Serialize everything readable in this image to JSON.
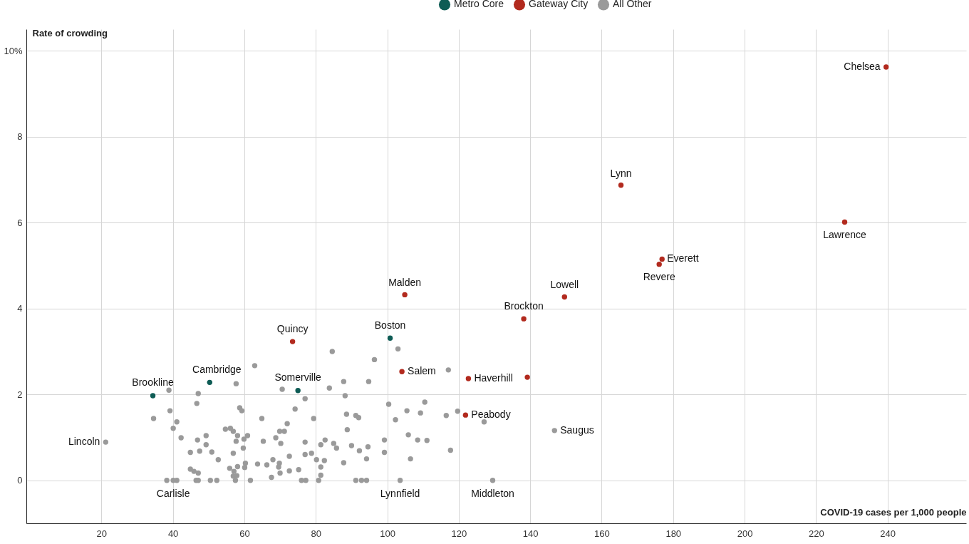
{
  "chart_data": {
    "type": "scatter",
    "xlabel": "COVID-19 cases per 1,000 people",
    "ylabel": "Rate of crowding",
    "xlim": [
      -1,
      262
    ],
    "ylim": [
      -1,
      10.5
    ],
    "xticks": [
      20,
      40,
      60,
      80,
      100,
      120,
      140,
      160,
      180,
      200,
      220,
      240
    ],
    "yticks": [
      0,
      2,
      4,
      6,
      8,
      {
        "value": 10,
        "label": "10%"
      }
    ],
    "grid": true,
    "legend": "top",
    "marker": "circle",
    "series": [
      {
        "name": "Metro Core",
        "color": "#0e5c55",
        "x": [
          34.4,
          50.3,
          75.0,
          100.8
        ],
        "values": [
          1.97,
          2.28,
          2.09,
          3.31
        ]
      },
      {
        "name": "Gateway City",
        "color": "#b22a1e",
        "x": [
          73.5,
          104.9,
          104.1,
          122.7,
          139.2,
          121.9,
          138.2,
          149.6,
          165.4,
          176.9,
          176.1,
          228.0,
          239.6
        ],
        "values": [
          3.23,
          4.32,
          2.53,
          2.37,
          2.4,
          1.52,
          3.76,
          4.27,
          6.87,
          5.15,
          5.03,
          6.01,
          9.62
        ]
      },
      {
        "name": "All Other",
        "color": "#9a9a9a",
        "x": [
          21.2,
          146.8,
          103.6,
          129.5,
          62.9,
          57.7,
          38.9,
          47.1,
          46.7,
          39.2,
          34.6,
          41.1,
          40.1,
          58.7,
          59.3,
          42.3,
          46.9,
          49.3,
          49.3,
          47.5,
          44.9,
          50.9,
          52.7,
          54.7,
          56.1,
          56.9,
          58.1,
          60.9,
          57.7,
          59.9,
          59.7,
          56.9,
          63.7,
          60.3,
          60.1,
          58.1,
          55.9,
          57.1,
          56.9,
          57.9,
          44.9,
          45.9,
          47.1,
          38.3,
          40.1,
          41.1,
          46.5,
          47.1,
          50.5,
          52.3,
          57.5,
          61.7,
          84.6,
          103.0,
          96.4,
          117.1,
          87.8,
          94.8,
          83.8,
          70.6,
          77.0,
          88.2,
          100.4,
          110.5,
          105.5,
          109.3,
          116.5,
          119.7,
          127.1,
          74.2,
          64.9,
          79.4,
          88.6,
          91.2,
          92.0,
          102.3,
          72.0,
          88.8,
          69.9,
          71.2,
          68.8,
          70.2,
          65.3,
          77.0,
          82.6,
          81.4,
          85.0,
          85.8,
          90.0,
          92.2,
          94.6,
          99.2,
          99.2,
          105.9,
          108.5,
          111.1,
          117.7,
          106.5,
          72.6,
          77.0,
          78.8,
          80.2,
          82.4,
          87.8,
          94.2,
          66.3,
          68.0,
          69.8,
          69.6,
          72.6,
          75.2,
          70.0,
          81.4,
          81.4,
          67.6,
          76.0,
          77.2,
          80.8,
          91.2,
          92.8,
          94.2
        ],
        "values": [
          0.89,
          1.16,
          0,
          0,
          2.67,
          2.25,
          2.1,
          2.02,
          1.79,
          1.62,
          1.44,
          1.36,
          1.21,
          1.69,
          1.62,
          0.99,
          0.94,
          1.04,
          0.83,
          0.68,
          0.65,
          0.66,
          0.48,
          1.19,
          1.21,
          1.14,
          1.04,
          1.04,
          0.91,
          0.96,
          0.75,
          0.63,
          0.38,
          0.4,
          0.3,
          0.32,
          0.28,
          0.21,
          0.1,
          0.11,
          0.26,
          0.21,
          0.17,
          0,
          0,
          0,
          0,
          0,
          0,
          0,
          0,
          0,
          3.0,
          3.06,
          2.81,
          2.57,
          2.3,
          2.3,
          2.15,
          2.12,
          1.9,
          1.97,
          1.77,
          1.82,
          1.62,
          1.57,
          1.51,
          1.61,
          1.36,
          1.66,
          1.44,
          1.44,
          1.54,
          1.51,
          1.46,
          1.41,
          1.32,
          1.18,
          1.14,
          1.14,
          0.99,
          0.86,
          0.91,
          0.89,
          0.94,
          0.83,
          0.86,
          0.75,
          0.81,
          0.69,
          0.78,
          0.94,
          0.65,
          1.06,
          0.94,
          0.93,
          0.7,
          0.5,
          0.56,
          0.6,
          0.63,
          0.48,
          0.46,
          0.41,
          0.5,
          0.36,
          0.48,
          0.4,
          0.31,
          0.22,
          0.25,
          0.17,
          0.31,
          0.12,
          0.07,
          0,
          0,
          0,
          0,
          0,
          0
        ]
      }
    ],
    "annotations": [
      {
        "text": "Chelsea",
        "x": 239.6,
        "y": 9.62
      },
      {
        "text": "Lynn",
        "x": 165.4,
        "y": 6.87
      },
      {
        "text": "Lawrence",
        "x": 228.0,
        "y": 6.01
      },
      {
        "text": "Everett",
        "x": 176.9,
        "y": 5.15
      },
      {
        "text": "Revere",
        "x": 176.1,
        "y": 5.03
      },
      {
        "text": "Lowell",
        "x": 149.6,
        "y": 4.27
      },
      {
        "text": "Malden",
        "x": 104.9,
        "y": 4.32
      },
      {
        "text": "Brockton",
        "x": 138.2,
        "y": 3.76
      },
      {
        "text": "Boston",
        "x": 100.8,
        "y": 3.31
      },
      {
        "text": "Quincy",
        "x": 73.5,
        "y": 3.23
      },
      {
        "text": "Salem",
        "x": 104.1,
        "y": 2.53
      },
      {
        "text": "Haverhill",
        "x": 122.7,
        "y": 2.37
      },
      {
        "text": "Peabody",
        "x": 121.9,
        "y": 1.52
      },
      {
        "text": "Saugus",
        "x": 146.8,
        "y": 1.16
      },
      {
        "text": "Cambridge",
        "x": 50.3,
        "y": 2.28
      },
      {
        "text": "Somerville",
        "x": 75.0,
        "y": 2.09
      },
      {
        "text": "Brookline",
        "x": 34.4,
        "y": 1.97
      },
      {
        "text": "Lincoln",
        "x": 21.2,
        "y": 0.89
      },
      {
        "text": "Carlisle",
        "x": 40.1,
        "y": 0
      },
      {
        "text": "Lynnfield",
        "x": 103.6,
        "y": 0
      },
      {
        "text": "Middleton",
        "x": 129.5,
        "y": 0
      }
    ]
  }
}
